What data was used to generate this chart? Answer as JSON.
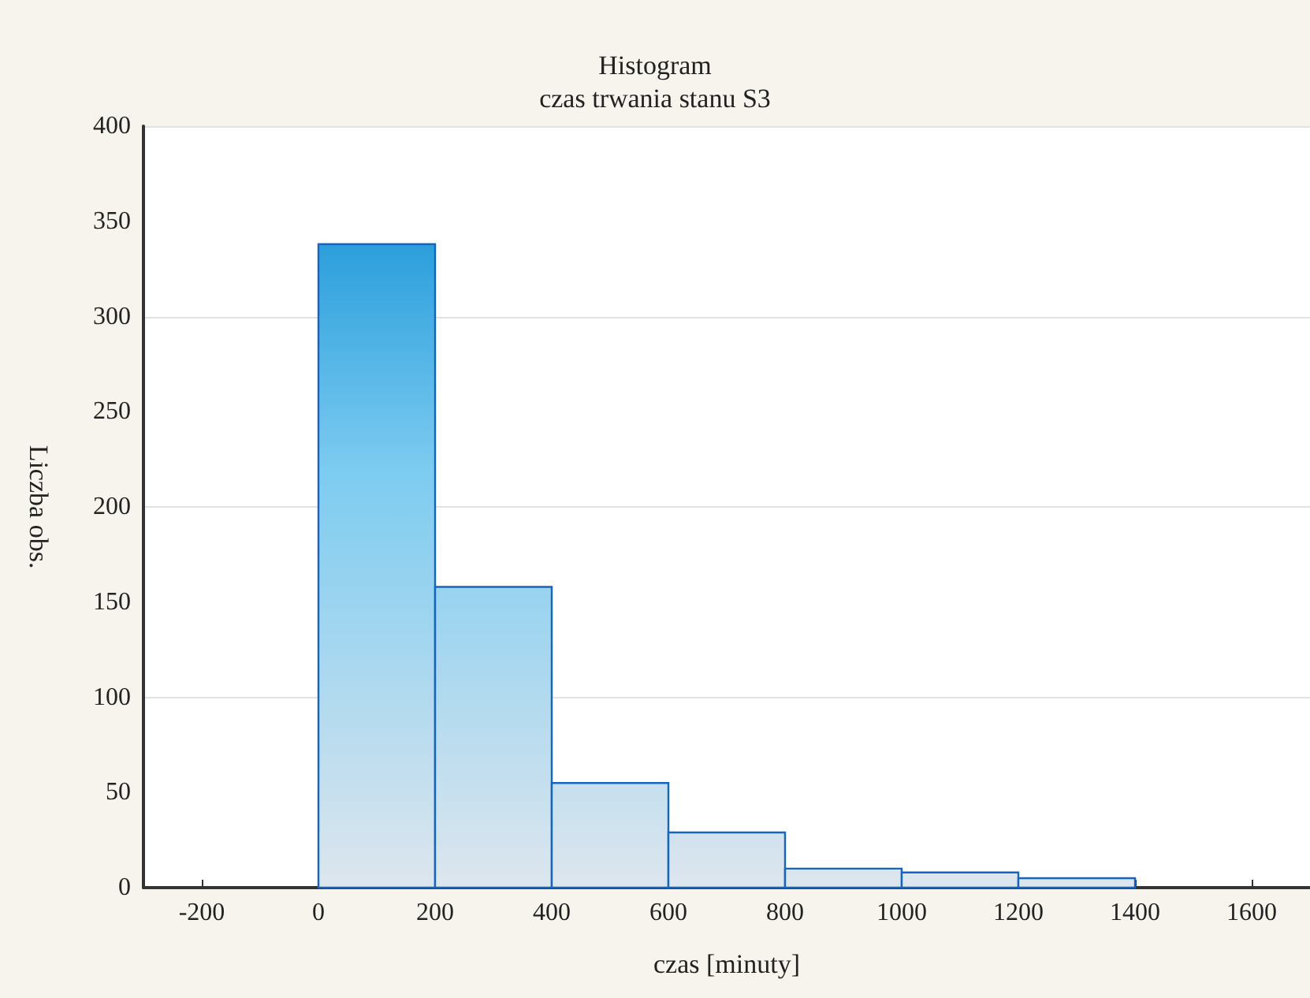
{
  "chart_data": {
    "type": "histogram",
    "title": "Histogram",
    "subtitle": "czas trwania stanu S3",
    "xlabel": "czas [minuty]",
    "ylabel": "Liczba obs.",
    "bins": [
      0,
      200,
      400,
      600,
      800,
      1000,
      1200,
      1400
    ],
    "values": [
      338,
      158,
      55,
      29,
      10,
      8,
      5
    ],
    "color": "#1565c0",
    "xlim": [
      -300,
      1700
    ],
    "xticks": [
      -200,
      0,
      200,
      400,
      600,
      800,
      1000,
      1200,
      1400,
      1600
    ],
    "ylim": [
      0,
      400
    ],
    "yticks": [
      0,
      50,
      100,
      150,
      200,
      250,
      300,
      350,
      400
    ],
    "grid": "y"
  }
}
